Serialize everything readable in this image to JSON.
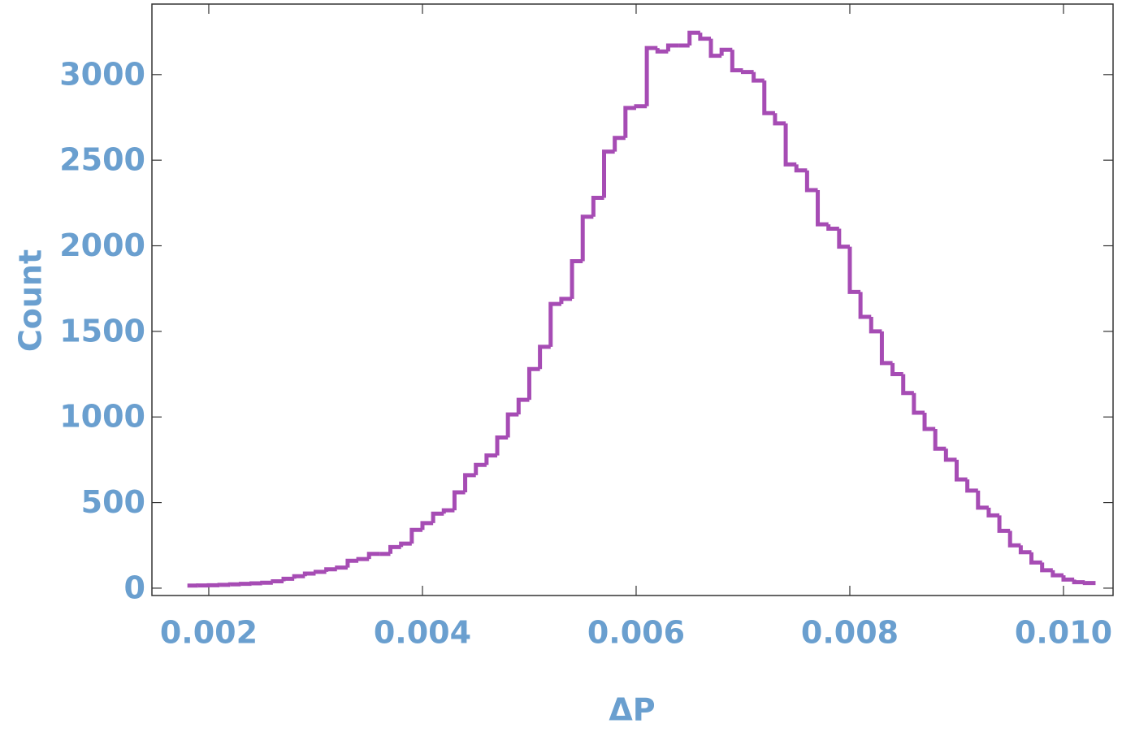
{
  "chart_data": {
    "type": "histogram",
    "x_label": "ΔP",
    "y_label": "Count",
    "color": "#a64cb4",
    "bins": [
      0.0018,
      0.0019,
      0.002,
      0.0021,
      0.0022,
      0.0023,
      0.0024,
      0.0025,
      0.0026,
      0.0027,
      0.0028,
      0.0029,
      0.003,
      0.0031,
      0.0032,
      0.0033,
      0.0034,
      0.0035,
      0.0036,
      0.0037,
      0.0038,
      0.0039,
      0.004,
      0.0041,
      0.0042,
      0.0043,
      0.0044,
      0.0045,
      0.0046,
      0.0047,
      0.0048,
      0.0049,
      0.005,
      0.0051,
      0.0052,
      0.0053,
      0.0054,
      0.0055,
      0.0056,
      0.0057,
      0.0058,
      0.0059,
      0.006,
      0.0061,
      0.0062,
      0.0063,
      0.0064,
      0.0065,
      0.0066,
      0.0067,
      0.0068,
      0.0069,
      0.007,
      0.0071,
      0.0072,
      0.0073,
      0.0074,
      0.0075,
      0.0076,
      0.0077,
      0.0078,
      0.0079,
      0.008,
      0.0081,
      0.0082,
      0.0083,
      0.0084,
      0.0085,
      0.0086,
      0.0087,
      0.0088,
      0.0089,
      0.009,
      0.0091,
      0.0092,
      0.0093,
      0.0094,
      0.0095,
      0.0096,
      0.0097,
      0.0098,
      0.0099,
      0.01,
      0.0101,
      0.0102,
      0.0103
    ],
    "values": [
      15,
      16,
      17,
      19,
      22,
      25,
      28,
      32,
      40,
      55,
      70,
      85,
      95,
      110,
      120,
      160,
      170,
      200,
      200,
      240,
      260,
      340,
      380,
      435,
      455,
      560,
      660,
      720,
      775,
      880,
      1015,
      1100,
      1280,
      1410,
      1660,
      1690,
      1910,
      2170,
      2280,
      2550,
      2630,
      2805,
      2815,
      3155,
      3135,
      3170,
      3170,
      3245,
      3210,
      3110,
      3145,
      3025,
      3015,
      2965,
      2775,
      2715,
      2475,
      2440,
      2325,
      2125,
      2100,
      1995,
      1730,
      1585,
      1500,
      1315,
      1250,
      1140,
      1025,
      930,
      815,
      750,
      635,
      570,
      470,
      425,
      335,
      250,
      210,
      150,
      105,
      75,
      50,
      35,
      30
    ],
    "xlim": [
      0.001468,
      0.010464
    ],
    "ylim": [
      -43,
      3412
    ],
    "xticks": [
      0.002,
      0.004,
      0.006,
      0.008,
      {
        "value": 0.01,
        "label": "0.010"
      }
    ],
    "yticks": [
      0,
      500,
      1000,
      1500,
      2000,
      2500,
      3000
    ]
  }
}
